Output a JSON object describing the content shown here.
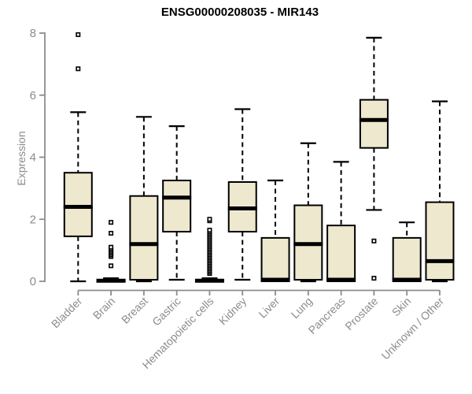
{
  "page": {
    "background": "#ffffff"
  },
  "chart_data": {
    "type": "boxplot",
    "title": "ENSG00000208035 - MIR143",
    "ylabel": "Expression",
    "xlabel": "",
    "ylim": [
      0,
      8
    ],
    "yticks": [
      0,
      2,
      4,
      6,
      8
    ],
    "grid": false,
    "legend_position": "none",
    "colors": {
      "box_fill": "#EDE8CE",
      "box_border": "#000000",
      "median": "#000000",
      "whisker": "#000000",
      "axis": "#8c8c8c",
      "tick_label": "#8c8c8c",
      "title": "#000000",
      "background": "#ffffff"
    },
    "categories": [
      "Bladder",
      "Brain",
      "Breast",
      "Gastric",
      "Hematopoietic cells",
      "Kidney",
      "Liver",
      "Lung",
      "Pancreas",
      "Prostate",
      "Skin",
      "Unknown / Other"
    ],
    "boxes": [
      {
        "category": "Bladder",
        "whisker_low": 0,
        "q1": 1.45,
        "median": 2.4,
        "q3": 3.5,
        "whisker_high": 5.45,
        "outliers": [
          6.85,
          7.95
        ]
      },
      {
        "category": "Brain",
        "whisker_low": 0,
        "q1": 0,
        "median": 0.02,
        "q3": 0.05,
        "whisker_high": 0.1,
        "outliers": [
          0.5,
          0.8,
          0.85,
          0.9,
          0.95,
          1.0,
          1.05,
          1.1,
          1.55,
          1.9
        ]
      },
      {
        "category": "Breast",
        "whisker_low": 0,
        "q1": 0.05,
        "median": 1.2,
        "q3": 2.75,
        "whisker_high": 5.3,
        "outliers": []
      },
      {
        "category": "Gastric",
        "whisker_low": 0.05,
        "q1": 1.6,
        "median": 2.7,
        "q3": 3.25,
        "whisker_high": 5.0,
        "outliers": []
      },
      {
        "category": "Hematopoietic cells",
        "whisker_low": 0,
        "q1": 0,
        "median": 0.02,
        "q3": 0.05,
        "whisker_high": 0.1,
        "outliers": [
          0.25,
          0.3,
          0.35,
          0.4,
          0.45,
          0.5,
          0.55,
          0.6,
          0.65,
          0.7,
          0.75,
          0.8,
          0.85,
          0.9,
          0.95,
          1.0,
          1.05,
          1.1,
          1.15,
          1.2,
          1.25,
          1.3,
          1.35,
          1.4,
          1.45,
          1.5,
          1.55,
          1.6,
          1.65,
          1.95,
          2.0
        ]
      },
      {
        "category": "Kidney",
        "whisker_low": 0.05,
        "q1": 1.6,
        "median": 2.35,
        "q3": 3.2,
        "whisker_high": 5.55,
        "outliers": []
      },
      {
        "category": "Liver",
        "whisker_low": 0,
        "q1": 0,
        "median": 0.05,
        "q3": 1.4,
        "whisker_high": 3.25,
        "outliers": []
      },
      {
        "category": "Lung",
        "whisker_low": 0,
        "q1": 0.05,
        "median": 1.2,
        "q3": 2.45,
        "whisker_high": 4.45,
        "outliers": []
      },
      {
        "category": "Pancreas",
        "whisker_low": 0,
        "q1": 0,
        "median": 0.05,
        "q3": 1.8,
        "whisker_high": 3.85,
        "outliers": []
      },
      {
        "category": "Prostate",
        "whisker_low": 2.3,
        "q1": 4.3,
        "median": 5.2,
        "q3": 5.85,
        "whisker_high": 7.85,
        "outliers": [
          0.1,
          1.3
        ]
      },
      {
        "category": "Skin",
        "whisker_low": 0,
        "q1": 0,
        "median": 0.05,
        "q3": 1.4,
        "whisker_high": 1.9,
        "outliers": []
      },
      {
        "category": "Unknown / Other",
        "whisker_low": 0,
        "q1": 0.05,
        "median": 0.65,
        "q3": 2.55,
        "whisker_high": 5.8,
        "outliers": []
      }
    ]
  }
}
